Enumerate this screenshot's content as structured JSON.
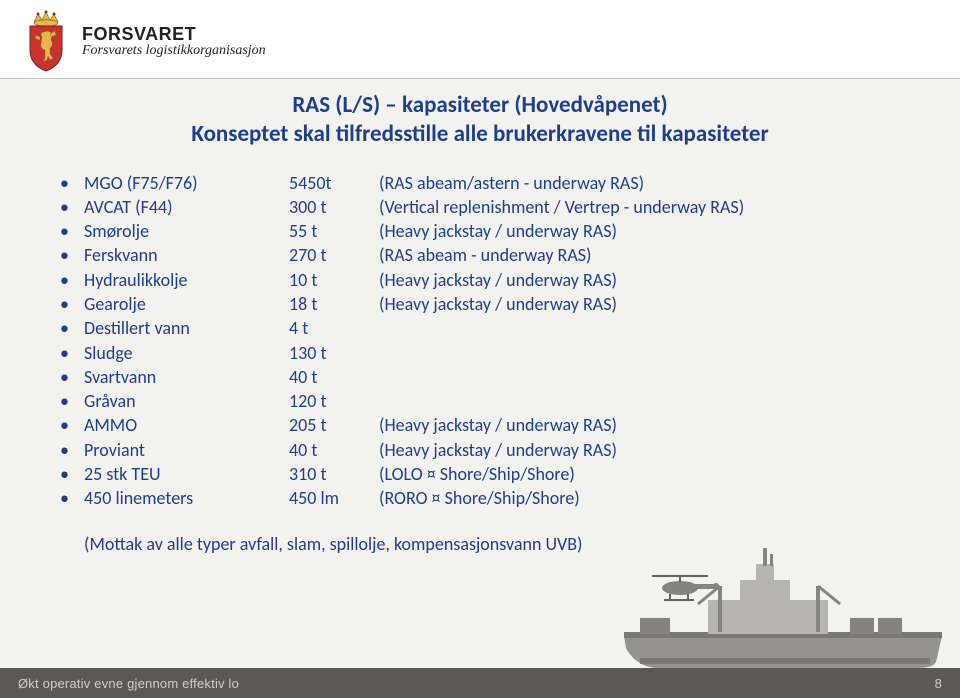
{
  "header": {
    "org_main": "FORSVARET",
    "org_sub": "Forsvarets logistikkorganisasjon"
  },
  "title": {
    "line1": "RAS (L/S) – kapasiteter (Hovedvåpenet)",
    "line2": "Konseptet skal tilfredsstille alle brukerkravene til kapasiteter"
  },
  "rows": [
    {
      "label": "MGO (F75/F76)",
      "amount": "5450t",
      "desc": "(RAS abeam/astern - underway RAS)"
    },
    {
      "label": "AVCAT (F44)",
      "amount": "300 t",
      "desc": "(Vertical replenishment / Vertrep - underway RAS)"
    },
    {
      "label": "Smørolje",
      "amount": "55 t",
      "desc": "(Heavy jackstay / underway RAS)"
    },
    {
      "label": "Ferskvann",
      "amount": "270 t",
      "desc": "(RAS abeam - underway RAS)"
    },
    {
      "label": "Hydraulikkolje",
      "amount": "10 t",
      "desc": "(Heavy jackstay / underway RAS)"
    },
    {
      "label": "Gearolje",
      "amount": "18 t",
      "desc": "(Heavy jackstay / underway RAS)"
    },
    {
      "label": "Destillert vann",
      "amount": "4 t",
      "desc": ""
    },
    {
      "label": "Sludge",
      "amount": "130 t",
      "desc": ""
    },
    {
      "label": "Svartvann",
      "amount": "40 t",
      "desc": ""
    },
    {
      "label": "Gråvan",
      "amount": "120 t",
      "desc": ""
    },
    {
      "label": "AMMO",
      "amount": "205 t",
      "desc": "(Heavy jackstay / underway RAS)"
    },
    {
      "label": "Proviant",
      "amount": "40 t",
      "desc": "(Heavy jackstay / underway RAS)"
    },
    {
      "label": "25 stk TEU",
      "amount": "310 t",
      "desc": "(LOLO ¤ Shore/Ship/Shore)"
    },
    {
      "label": "450 linemeters",
      "amount": "450 lm",
      "desc": "(RORO ¤ Shore/Ship/Shore)"
    }
  ],
  "footnote": "(Mottak av alle typer avfall, slam, spillolje, kompensasjonsvann UVB)",
  "footer": {
    "text": "Økt operativ evne gjennom effektiv lo",
    "page": "8"
  },
  "style": {
    "content_color": "#1f3f8c",
    "crest": {
      "shield_fill": "#c8342b",
      "shield_stroke": "#7a1f18",
      "lion_fill": "#e8b64a",
      "crown_fill": "#e8b64a",
      "crown_jewel": "#9b2b22"
    },
    "ship": {
      "hull": "#8a8a82",
      "hull_dark": "#6c6c64",
      "superstructure": "#b0b0a8",
      "detail": "#7a7a72",
      "heli_body": "#7a7a74",
      "heli_rotor": "#555"
    }
  }
}
